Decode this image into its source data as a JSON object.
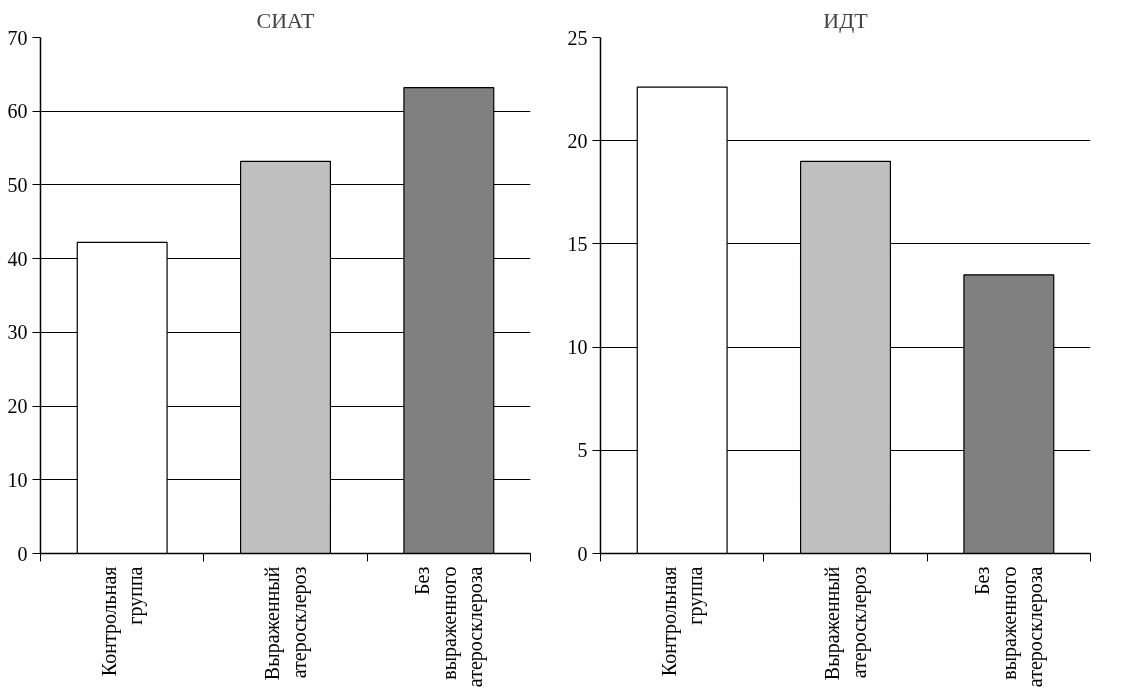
{
  "chart_data": [
    {
      "type": "bar",
      "title": "СИАТ",
      "categories": [
        "Контрольная группа",
        "Выраженный атеросклероз",
        "Без выраженного атеросклероза"
      ],
      "values": [
        42.2,
        53.2,
        63.2
      ],
      "colors": [
        "#ffffff",
        "#c0c0c0",
        "#808080"
      ],
      "ylim": [
        0,
        70
      ],
      "yticks": [
        0,
        10,
        20,
        30,
        40,
        50,
        60,
        70
      ],
      "grid": "y"
    },
    {
      "type": "bar",
      "title": "ИДТ",
      "categories": [
        "Контрольная группа",
        "Выраженный атеросклероз",
        "Без выраженного атеросклероза"
      ],
      "values": [
        22.6,
        19.0,
        13.5
      ],
      "colors": [
        "#ffffff",
        "#c0c0c0",
        "#808080"
      ],
      "ylim": [
        0,
        25
      ],
      "yticks": [
        0,
        5,
        10,
        15,
        20,
        25
      ],
      "grid": "y"
    }
  ]
}
